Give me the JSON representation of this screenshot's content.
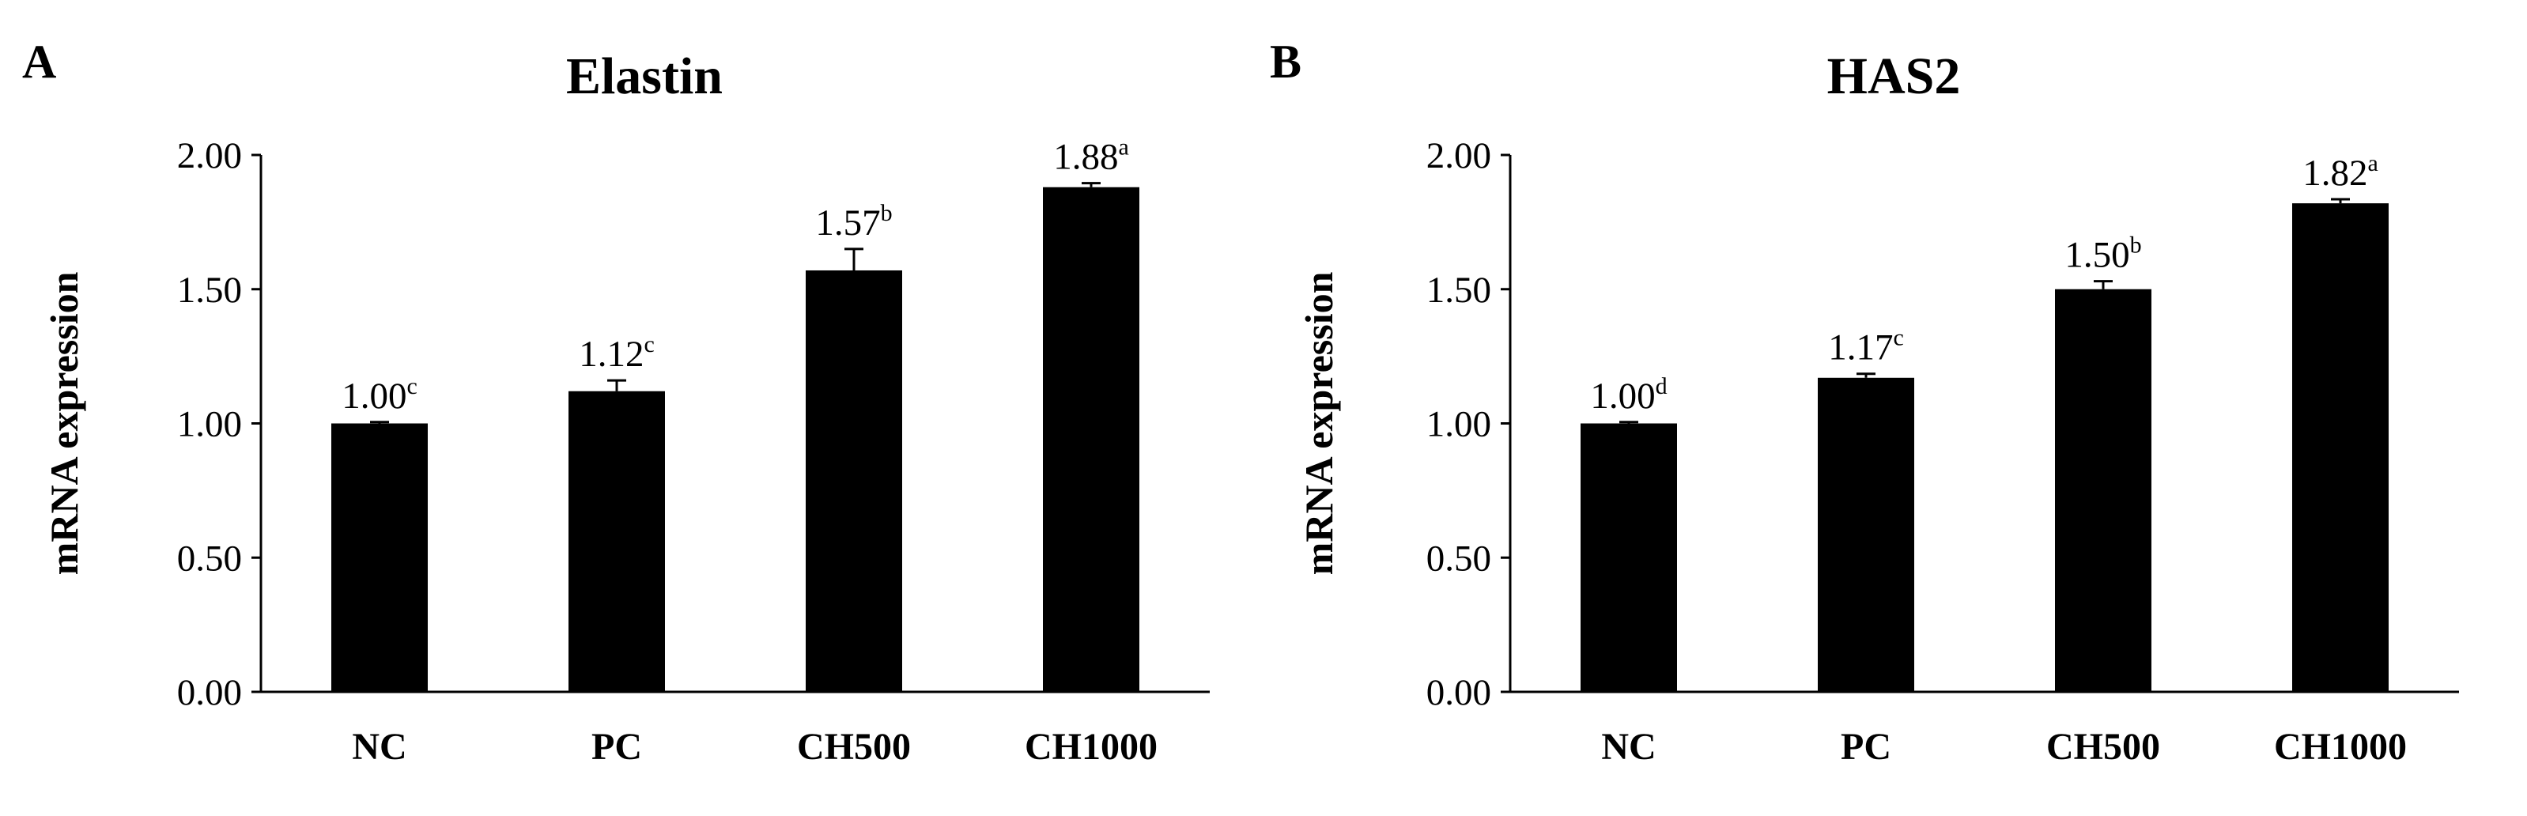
{
  "panels": [
    {
      "letter": "A",
      "chart_data": {
        "type": "bar",
        "title": "Elastin",
        "xlabel": "",
        "ylabel": "mRNA expression",
        "ylim": [
          0,
          2
        ],
        "yticks": [
          "0.00",
          "0.50",
          "1.00",
          "1.50",
          "2.00"
        ],
        "categories": [
          "NC",
          "PC",
          "CH500",
          "CH1000"
        ],
        "values": [
          1.0,
          1.12,
          1.57,
          1.88
        ],
        "errors": [
          0.005,
          0.04,
          0.08,
          0.015
        ],
        "labels": [
          "1.00",
          "1.12",
          "1.57",
          "1.88"
        ],
        "superscripts": [
          "c",
          "c",
          "b",
          "a"
        ],
        "bar_color": "#000000",
        "grid": false
      }
    },
    {
      "letter": "B",
      "chart_data": {
        "type": "bar",
        "title": "HAS2",
        "xlabel": "",
        "ylabel": "mRNA expression",
        "ylim": [
          0,
          2
        ],
        "yticks": [
          "0.00",
          "0.50",
          "1.00",
          "1.50",
          "2.00"
        ],
        "categories": [
          "NC",
          "PC",
          "CH500",
          "CH1000"
        ],
        "values": [
          1.0,
          1.17,
          1.5,
          1.82
        ],
        "errors": [
          0.005,
          0.015,
          0.03,
          0.015
        ],
        "labels": [
          "1.00",
          "1.17",
          "1.50",
          "1.82"
        ],
        "superscripts": [
          "d",
          "c",
          "b",
          "a"
        ],
        "bar_color": "#000000",
        "grid": false
      }
    }
  ]
}
